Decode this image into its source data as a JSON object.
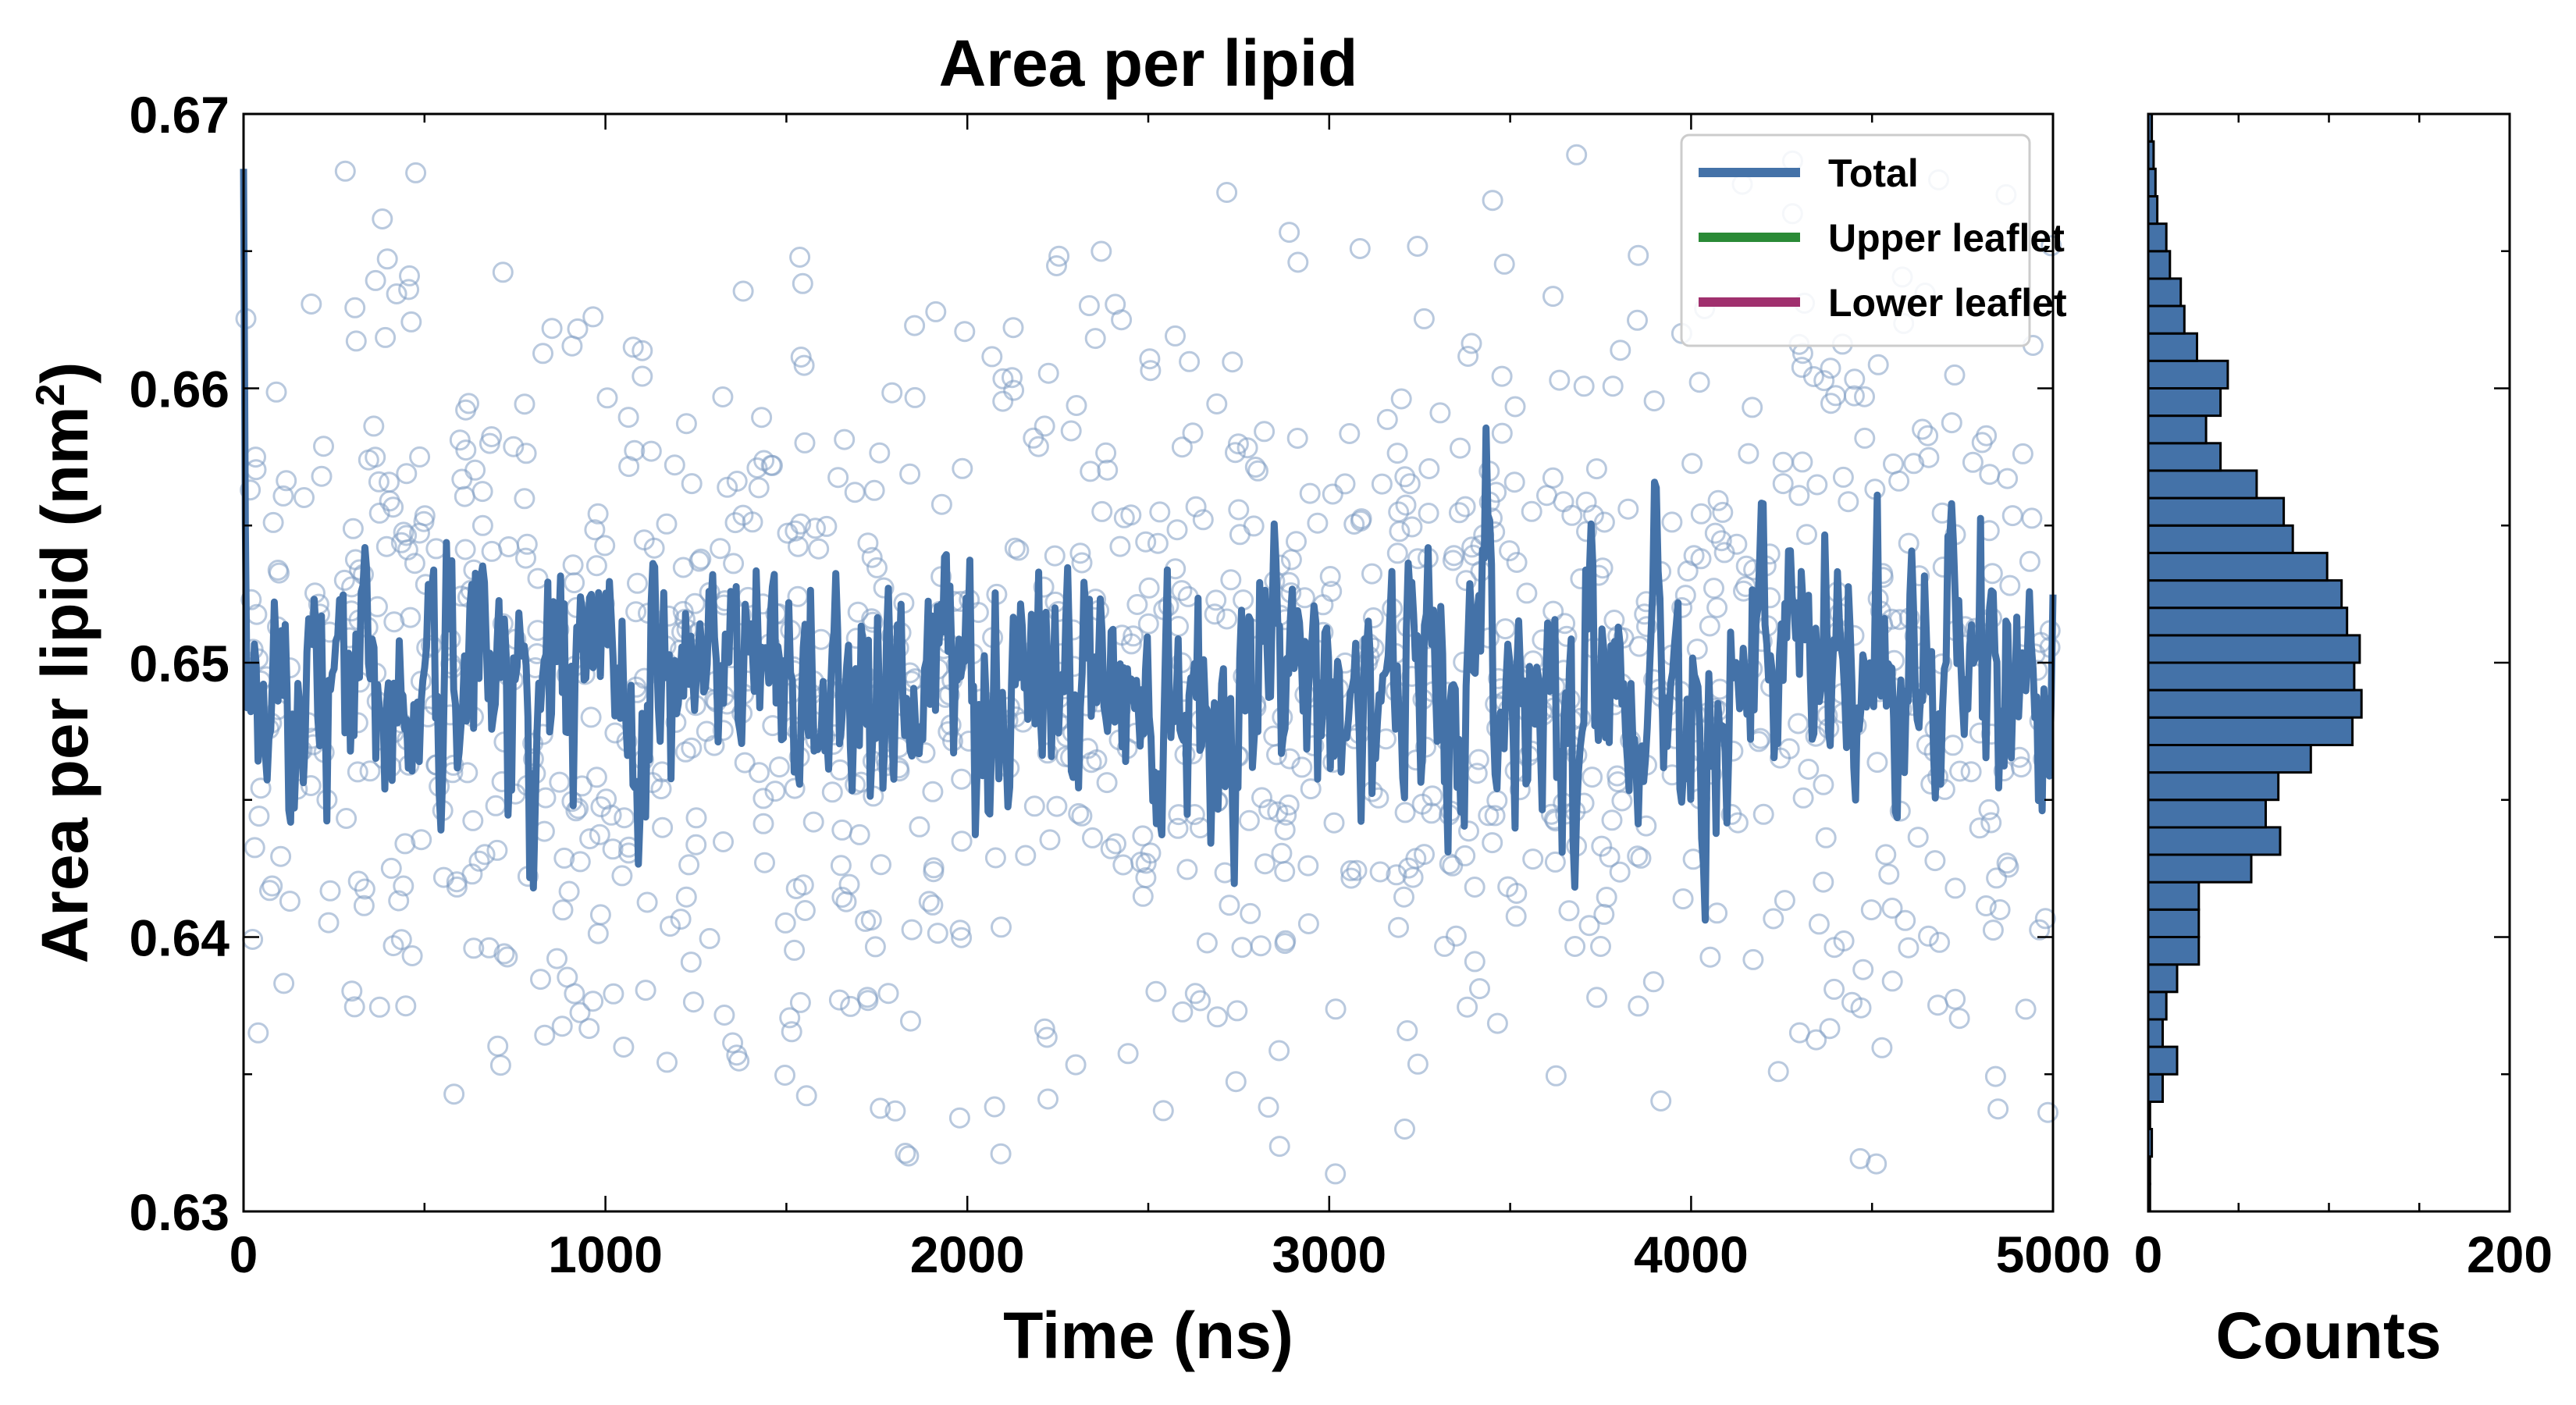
{
  "chart_data": [
    {
      "type": "line+scatter",
      "title": "Area per lipid",
      "xlabel": "Time (ns)",
      "ylabel": "Area per lipid (nm²)",
      "ylabel_main": "Area per lipid (nm",
      "ylabel_sup": "2",
      "ylabel_close": ")",
      "xlim": [
        0,
        5000
      ],
      "ylim": [
        0.63,
        0.67
      ],
      "xticks": [
        0,
        1000,
        2000,
        3000,
        4000,
        5000
      ],
      "yticks": [
        0.63,
        0.64,
        0.65,
        0.66,
        0.67
      ],
      "xtick_labels": [
        "0",
        "1000",
        "2000",
        "3000",
        "4000",
        "5000"
      ],
      "ytick_labels": [
        "0.63",
        "0.64",
        "0.65",
        "0.66",
        "0.67"
      ],
      "legend_position": "top-right",
      "series": [
        {
          "name": "Total",
          "color": "#4472a8",
          "style": "line",
          "mean": 0.6495,
          "std": 0.0025,
          "n": 1000
        },
        {
          "name": "Upper leaflet",
          "color": "#2a8a36",
          "style": "legend-only"
        },
        {
          "name": "Lower leaflet",
          "color": "#a0306e",
          "style": "legend-only"
        },
        {
          "name": "samples",
          "color": "#7f9cc2",
          "style": "open-circle",
          "mean": 0.6495,
          "std": 0.0075,
          "n": 1200
        }
      ]
    },
    {
      "type": "bar",
      "orientation": "horizontal",
      "xlabel": "Counts",
      "xlim": [
        0,
        200
      ],
      "xticks": [
        0,
        200
      ],
      "xtick_labels": [
        "0",
        "200"
      ],
      "ylim": [
        0.63,
        0.67
      ],
      "bin_width": 0.001,
      "bin_starts": [
        0.63,
        0.631,
        0.632,
        0.633,
        0.634,
        0.635,
        0.636,
        0.637,
        0.638,
        0.639,
        0.64,
        0.641,
        0.642,
        0.643,
        0.644,
        0.645,
        0.646,
        0.647,
        0.648,
        0.649,
        0.65,
        0.651,
        0.652,
        0.653,
        0.654,
        0.655,
        0.656,
        0.657,
        0.658,
        0.659,
        0.66,
        0.661,
        0.662,
        0.663,
        0.664,
        0.665,
        0.666,
        0.667,
        0.668,
        0.669
      ],
      "values": [
        1,
        1,
        2,
        1,
        8,
        16,
        8,
        10,
        16,
        28,
        28,
        28,
        57,
        73,
        65,
        72,
        90,
        113,
        118,
        114,
        117,
        110,
        107,
        99,
        80,
        75,
        60,
        40,
        32,
        40,
        44,
        27,
        20,
        18,
        12,
        10,
        5,
        4,
        3,
        2
      ],
      "color": "#4472a8"
    }
  ]
}
